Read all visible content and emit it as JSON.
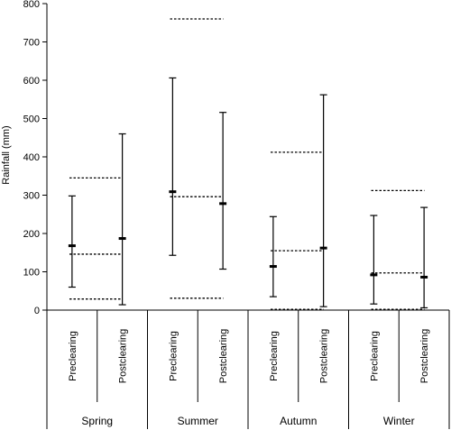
{
  "chart_data": {
    "type": "errorbar",
    "ylabel": "Rainfall (mm)",
    "ylim": [
      0,
      800
    ],
    "yticks": [
      0,
      100,
      200,
      300,
      400,
      500,
      600,
      700,
      800
    ],
    "groups": [
      {
        "season": "Spring",
        "reference_dotted": [
          29,
          146,
          345
        ],
        "bars": [
          {
            "category": "Preclearing",
            "min": 60,
            "mean": 168,
            "max": 298
          },
          {
            "category": "Postclearing",
            "min": 14,
            "mean": 187,
            "max": 460
          }
        ]
      },
      {
        "season": "Summer",
        "reference_dotted": [
          31,
          296,
          760
        ],
        "bars": [
          {
            "category": "Preclearing",
            "min": 143,
            "mean": 309,
            "max": 606
          },
          {
            "category": "Postclearing",
            "min": 107,
            "mean": 278,
            "max": 516
          }
        ]
      },
      {
        "season": "Autumn",
        "reference_dotted": [
          2,
          155,
          412
        ],
        "bars": [
          {
            "category": "Preclearing",
            "min": 35,
            "mean": 114,
            "max": 244
          },
          {
            "category": "Postclearing",
            "min": 9,
            "mean": 162,
            "max": 562
          }
        ]
      },
      {
        "season": "Winter",
        "reference_dotted": [
          2,
          97,
          312
        ],
        "bars": [
          {
            "category": "Preclearing",
            "min": 16,
            "mean": 92,
            "max": 247
          },
          {
            "category": "Postclearing",
            "min": 6,
            "mean": 86,
            "max": 268
          }
        ]
      }
    ]
  }
}
